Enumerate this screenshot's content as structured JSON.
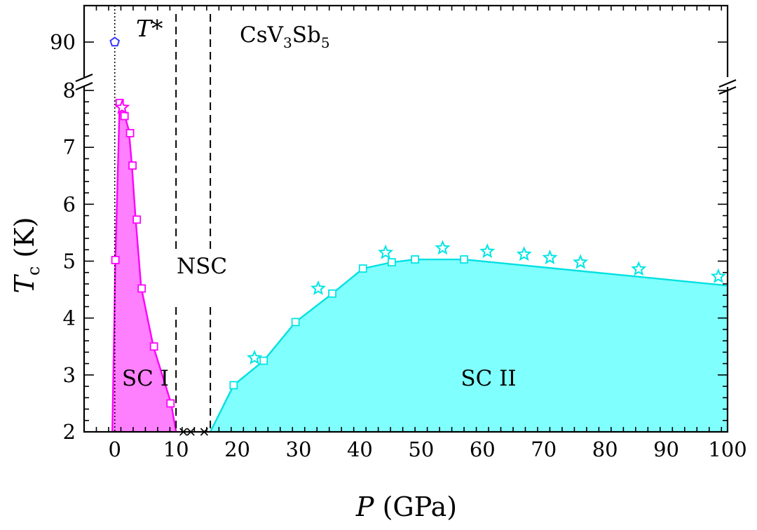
{
  "chart_data": {
    "type": "scatter",
    "title": "CsV3Sb5",
    "title_main": "CsV",
    "title_sub1": "3",
    "title_mid": "Sb",
    "title_sub2": "5",
    "xlabel_var": "P",
    "xlabel_unit": "(GPa)",
    "ylabel_var": "T",
    "ylabel_sub": "c",
    "ylabel_unit": "(K)",
    "xlim": [
      -5,
      100
    ],
    "ylim": [
      2,
      8
    ],
    "y_break_top": 90,
    "x_ticks": [
      0,
      10,
      20,
      30,
      40,
      50,
      60,
      70,
      80,
      90,
      100
    ],
    "x_tick_labels": [
      "0",
      "10",
      "20",
      "30",
      "40",
      "50",
      "60",
      "70",
      "80",
      "90",
      "100"
    ],
    "y_ticks": [
      2,
      3,
      4,
      5,
      6,
      7,
      8
    ],
    "y_tick_labels": [
      "2",
      "3",
      "4",
      "5",
      "6",
      "7",
      "8"
    ],
    "y_top_tick_label": "90",
    "boundaries": [
      {
        "name": "T*",
        "x": 0
      },
      {
        "name": "NSC-left",
        "x": 10
      },
      {
        "name": "NSC-right",
        "x": 15.6
      }
    ],
    "regions": [
      {
        "name": "SC I",
        "label": "SC I",
        "label_at": [
          5,
          2.95
        ],
        "color": "#ff80ff",
        "edge": "#ff00ff",
        "outline": [
          [
            -0.4,
            2
          ],
          [
            0.1,
            5.0
          ],
          [
            0.8,
            7.78
          ],
          [
            1.2,
            7.72
          ],
          [
            2.3,
            7.3
          ],
          [
            2.8,
            6.68
          ],
          [
            3.4,
            5.75
          ],
          [
            4.3,
            4.55
          ],
          [
            6.3,
            3.5
          ],
          [
            9.2,
            2.5
          ],
          [
            10,
            2
          ]
        ]
      },
      {
        "name": "SC II",
        "label": "SC II",
        "label_at": [
          61,
          2.95
        ],
        "color": "#80ffff",
        "edge": "#00e0e0",
        "outline": [
          [
            15.6,
            2
          ],
          [
            19.4,
            2.82
          ],
          [
            24.3,
            3.25
          ],
          [
            29.5,
            3.93
          ],
          [
            35.5,
            4.43
          ],
          [
            40.5,
            4.87
          ],
          [
            45.2,
            4.98
          ],
          [
            49,
            5.03
          ],
          [
            57,
            5.03
          ],
          [
            100,
            4.57
          ]
        ]
      }
    ],
    "region_label_nsc": "NSC",
    "label_tstar": "T*",
    "series": [
      {
        "name": "SC I squares",
        "marker": "square",
        "color": "#ff00ff",
        "points": [
          [
            0.1,
            5.02
          ],
          [
            0.8,
            7.78
          ],
          [
            1.6,
            7.55
          ],
          [
            2.5,
            7.25
          ],
          [
            2.9,
            6.68
          ],
          [
            3.6,
            5.73
          ],
          [
            4.4,
            4.52
          ],
          [
            6.4,
            3.5
          ],
          [
            9.1,
            2.5
          ]
        ]
      },
      {
        "name": "SC I stars",
        "marker": "star",
        "color": "#ff00ff",
        "points": [
          [
            1.2,
            7.7
          ]
        ]
      },
      {
        "name": "SC II squares",
        "marker": "square",
        "color": "#00e5e5",
        "points": [
          [
            19.4,
            2.82
          ],
          [
            24.3,
            3.25
          ],
          [
            29.5,
            3.93
          ],
          [
            35.5,
            4.43
          ],
          [
            40.5,
            4.87
          ],
          [
            45.2,
            4.98
          ],
          [
            49,
            5.03
          ],
          [
            57,
            5.03
          ]
        ]
      },
      {
        "name": "SC II stars",
        "marker": "star",
        "color": "#00e5e5",
        "points": [
          [
            22.8,
            3.3
          ],
          [
            33.2,
            4.52
          ],
          [
            44.2,
            5.15
          ],
          [
            53.5,
            5.23
          ],
          [
            60.8,
            5.17
          ],
          [
            66.8,
            5.12
          ],
          [
            71,
            5.06
          ],
          [
            76,
            4.98
          ],
          [
            85.5,
            4.86
          ],
          [
            98.5,
            4.73
          ]
        ]
      },
      {
        "name": "Non-SC markers",
        "marker": "cross",
        "color": "#000000",
        "points": [
          [
            11.2,
            2
          ],
          [
            12.4,
            2
          ],
          [
            14.6,
            2
          ]
        ]
      },
      {
        "name": "T* marker",
        "marker": "pentagon",
        "color": "#3333ff",
        "points": [
          [
            0,
            90
          ]
        ]
      }
    ]
  }
}
